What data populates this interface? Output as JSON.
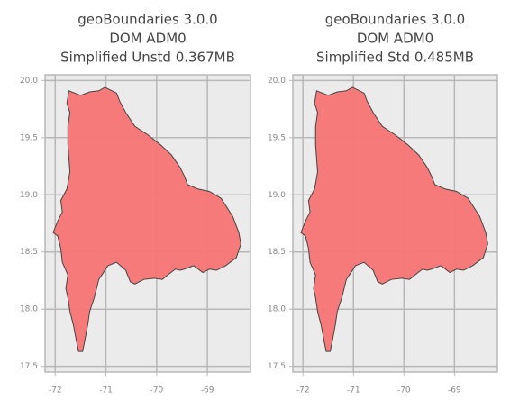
{
  "chart_data": [
    {
      "type": "polygon",
      "title": [
        "geoBoundaries 3.0.0",
        "DOM ADM0",
        "Simplified Unstd 0.367MB"
      ],
      "color": "#f87474",
      "edge_color": "#444444",
      "grid": true,
      "xlim": [
        -72.2,
        -68.15
      ],
      "ylim": [
        17.45,
        20.05
      ],
      "xticks": [
        -72,
        -71,
        -70,
        -69
      ],
      "yticks": [
        {
          "value": 17.5,
          "label": "17.5"
        },
        {
          "value": 18,
          "label": "18.0"
        },
        18.5,
        {
          "value": 19,
          "label": "19.0"
        },
        19.5,
        {
          "value": 20,
          "label": "20.0"
        }
      ],
      "x": [
        -71.02,
        -70.79,
        -70.73,
        -70.61,
        -70.43,
        -70.16,
        -69.93,
        -69.71,
        -69.54,
        -69.45,
        -69.39,
        -69.18,
        -68.96,
        -68.73,
        -68.5,
        -68.38,
        -68.34,
        -68.43,
        -68.64,
        -68.82,
        -68.96,
        -69.09,
        -69.27,
        -69.45,
        -69.54,
        -69.63,
        -69.75,
        -69.89,
        -70.04,
        -70.25,
        -70.43,
        -70.52,
        -70.61,
        -70.79,
        -70.96,
        -71.14,
        -71.23,
        -71.32,
        -71.36,
        -71.41,
        -71.46,
        -71.54,
        -71.59,
        -71.64,
        -71.71,
        -71.75,
        -71.79,
        -71.75,
        -71.86,
        -71.89,
        -71.95,
        -72.04,
        -71.95,
        -71.86,
        -71.89,
        -71.77,
        -71.71,
        -71.75,
        -71.75,
        -71.71,
        -71.77,
        -71.73,
        -71.5,
        -71.32,
        -71.14
      ],
      "y": [
        19.94,
        19.89,
        19.82,
        19.72,
        19.6,
        19.52,
        19.44,
        19.35,
        19.24,
        19.16,
        19.09,
        19.05,
        19.03,
        18.97,
        18.81,
        18.67,
        18.57,
        18.45,
        18.38,
        18.34,
        18.35,
        18.32,
        18.38,
        18.35,
        18.34,
        18.35,
        18.31,
        18.26,
        18.27,
        18.26,
        18.22,
        18.24,
        18.34,
        18.41,
        18.38,
        18.26,
        18.1,
        17.98,
        17.86,
        17.74,
        17.63,
        17.63,
        17.74,
        17.86,
        17.98,
        18.1,
        18.18,
        18.3,
        18.41,
        18.53,
        18.64,
        18.67,
        18.77,
        18.85,
        18.95,
        19.05,
        19.2,
        19.44,
        19.6,
        19.72,
        19.8,
        19.91,
        19.87,
        19.9,
        19.91
      ]
    },
    {
      "type": "polygon",
      "title": [
        "geoBoundaries 3.0.0",
        "DOM ADM0",
        "Simplified Std 0.485MB"
      ],
      "color": "#f87474",
      "edge_color": "#444444",
      "grid": true,
      "xlim": [
        -72.2,
        -68.15
      ],
      "ylim": [
        17.45,
        20.05
      ],
      "xticks": [
        -72,
        -71,
        -70,
        -69
      ],
      "yticks": [
        {
          "value": 17.5,
          "label": "17.5"
        },
        {
          "value": 18,
          "label": "18.0"
        },
        18.5,
        {
          "value": 19,
          "label": "19.0"
        },
        19.5,
        {
          "value": 20,
          "label": "20.0"
        }
      ],
      "x": [
        -71.02,
        -70.79,
        -70.73,
        -70.61,
        -70.43,
        -70.16,
        -69.93,
        -69.71,
        -69.54,
        -69.45,
        -69.39,
        -69.18,
        -68.96,
        -68.73,
        -68.5,
        -68.38,
        -68.34,
        -68.43,
        -68.64,
        -68.82,
        -68.96,
        -69.09,
        -69.27,
        -69.45,
        -69.54,
        -69.63,
        -69.75,
        -69.89,
        -70.04,
        -70.25,
        -70.43,
        -70.52,
        -70.61,
        -70.79,
        -70.96,
        -71.14,
        -71.23,
        -71.32,
        -71.36,
        -71.41,
        -71.46,
        -71.54,
        -71.59,
        -71.64,
        -71.71,
        -71.75,
        -71.79,
        -71.75,
        -71.86,
        -71.89,
        -71.95,
        -72.04,
        -71.95,
        -71.86,
        -71.89,
        -71.77,
        -71.71,
        -71.75,
        -71.75,
        -71.71,
        -71.77,
        -71.73,
        -71.5,
        -71.32,
        -71.14
      ],
      "y": [
        19.94,
        19.89,
        19.82,
        19.72,
        19.6,
        19.52,
        19.44,
        19.35,
        19.24,
        19.16,
        19.09,
        19.05,
        19.03,
        18.97,
        18.81,
        18.67,
        18.57,
        18.45,
        18.38,
        18.34,
        18.35,
        18.32,
        18.38,
        18.35,
        18.34,
        18.35,
        18.31,
        18.26,
        18.27,
        18.26,
        18.22,
        18.24,
        18.34,
        18.41,
        18.38,
        18.26,
        18.1,
        17.98,
        17.86,
        17.74,
        17.63,
        17.63,
        17.74,
        17.86,
        17.98,
        18.1,
        18.18,
        18.3,
        18.41,
        18.53,
        18.64,
        18.67,
        18.77,
        18.85,
        18.95,
        19.05,
        19.2,
        19.44,
        19.6,
        19.72,
        19.8,
        19.91,
        19.87,
        19.9,
        19.91
      ]
    }
  ]
}
